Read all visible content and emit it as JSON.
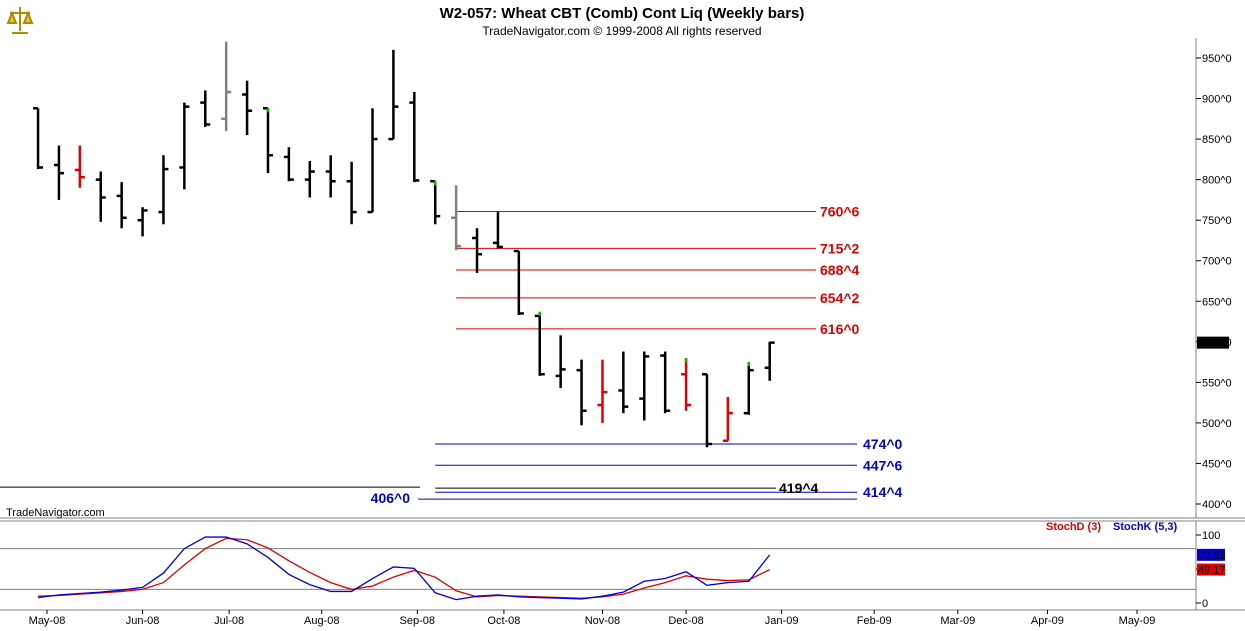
{
  "title": "W2-057:  Wheat CBT (Comb) Cont Liq  (Weekly bars)",
  "subtitle": "TradeNavigator.com © 1999-2008 All rights reserved",
  "watermark": "TradeNavigator.com",
  "logo_icon": "scales-logo-icon",
  "colors": {
    "bar": "#000000",
    "bar_down": "#e00000",
    "bar_gray": "#808080",
    "bar_green": "#00c000",
    "red_level": "#e00000",
    "blue_level": "#0000cc",
    "stoch_k": "#0000dd",
    "stoch_d": "#e00000"
  },
  "chart_data": [
    {
      "type": "ohlc",
      "name": "price",
      "title": "W2-057:  Wheat CBT (Comb) Cont Liq  (Weekly bars)",
      "ylim": [
        380,
        975
      ],
      "yticks": [
        {
          "v": 950,
          "label": "950^0"
        },
        {
          "v": 900,
          "label": "900^0"
        },
        {
          "v": 850,
          "label": "850^0"
        },
        {
          "v": 800,
          "label": "800^0"
        },
        {
          "v": 750,
          "label": "750^0"
        },
        {
          "v": 700,
          "label": "700^0"
        },
        {
          "v": 650,
          "label": "650^0"
        },
        {
          "v": 600,
          "label": "600^0"
        },
        {
          "v": 550,
          "label": "550^0"
        },
        {
          "v": 500,
          "label": "500^0"
        },
        {
          "v": 450,
          "label": "450^0"
        },
        {
          "v": 400,
          "label": "400^0"
        }
      ],
      "current_price": {
        "value": 599,
        "label": "599^0"
      },
      "xlim": [
        "2008-04-28",
        "2009-05-25"
      ],
      "x_ticks": [
        {
          "date": "2008-05-01",
          "label": "May-08"
        },
        {
          "date": "2008-06-02",
          "label": "Jun-08"
        },
        {
          "date": "2008-07-01",
          "label": "Jul-08"
        },
        {
          "date": "2008-08-01",
          "label": "Aug-08"
        },
        {
          "date": "2008-09-02",
          "label": "Sep-08"
        },
        {
          "date": "2008-10-01",
          "label": "Oct-08"
        },
        {
          "date": "2008-11-03",
          "label": "Nov-08"
        },
        {
          "date": "2008-12-01",
          "label": "Dec-08"
        },
        {
          "date": "2009-01-02",
          "label": "Jan-09"
        },
        {
          "date": "2009-02-02",
          "label": "Feb-09"
        },
        {
          "date": "2009-03-02",
          "label": "Mar-09"
        },
        {
          "date": "2009-04-01",
          "label": "Apr-09"
        },
        {
          "date": "2009-05-01",
          "label": "May-09"
        }
      ],
      "bars": [
        {
          "date": "2008-04-28",
          "o": 888,
          "h": 888,
          "l": 813,
          "c": 815,
          "color": "black"
        },
        {
          "date": "2008-05-05",
          "o": 818,
          "h": 842,
          "l": 775,
          "c": 808,
          "color": "black"
        },
        {
          "date": "2008-05-12",
          "o": 812,
          "h": 842,
          "l": 790,
          "c": 803,
          "color": "red"
        },
        {
          "date": "2008-05-19",
          "o": 800,
          "h": 810,
          "l": 748,
          "c": 778,
          "color": "black"
        },
        {
          "date": "2008-05-26",
          "o": 780,
          "h": 797,
          "l": 740,
          "c": 753,
          "color": "black"
        },
        {
          "date": "2008-06-02",
          "o": 750,
          "h": 766,
          "l": 730,
          "c": 762,
          "color": "black"
        },
        {
          "date": "2008-06-09",
          "o": 760,
          "h": 830,
          "l": 745,
          "c": 813,
          "color": "black"
        },
        {
          "date": "2008-06-16",
          "o": 815,
          "h": 895,
          "l": 788,
          "c": 890,
          "color": "black"
        },
        {
          "date": "2008-06-23",
          "o": 895,
          "h": 910,
          "l": 865,
          "c": 868,
          "color": "black"
        },
        {
          "date": "2008-06-30",
          "o": 875,
          "h": 970,
          "l": 860,
          "c": 908,
          "color": "gray"
        },
        {
          "date": "2008-07-07",
          "o": 905,
          "h": 922,
          "l": 855,
          "c": 885,
          "color": "black"
        },
        {
          "date": "2008-07-14",
          "o": 888,
          "h": 888,
          "l": 808,
          "c": 830,
          "color": "black",
          "mark": "green"
        },
        {
          "date": "2008-07-21",
          "o": 828,
          "h": 840,
          "l": 798,
          "c": 800,
          "color": "black"
        },
        {
          "date": "2008-07-28",
          "o": 800,
          "h": 823,
          "l": 778,
          "c": 810,
          "color": "black"
        },
        {
          "date": "2008-08-04",
          "o": 810,
          "h": 830,
          "l": 778,
          "c": 798,
          "color": "black"
        },
        {
          "date": "2008-08-11",
          "o": 798,
          "h": 822,
          "l": 745,
          "c": 760,
          "color": "black"
        },
        {
          "date": "2008-08-18",
          "o": 760,
          "h": 888,
          "l": 760,
          "c": 850,
          "color": "black"
        },
        {
          "date": "2008-08-25",
          "o": 850,
          "h": 960,
          "l": 850,
          "c": 890,
          "color": "black"
        },
        {
          "date": "2008-09-01",
          "o": 895,
          "h": 908,
          "l": 797,
          "c": 799,
          "color": "black"
        },
        {
          "date": "2008-09-08",
          "o": 798,
          "h": 798,
          "l": 745,
          "c": 755,
          "color": "black",
          "mark": "green"
        },
        {
          "date": "2008-09-15",
          "o": 753,
          "h": 793,
          "l": 713,
          "c": 718,
          "color": "gray"
        },
        {
          "date": "2008-09-22",
          "o": 728,
          "h": 740,
          "l": 685,
          "c": 708,
          "color": "black"
        },
        {
          "date": "2008-09-29",
          "o": 722,
          "h": 760,
          "l": 715,
          "c": 717,
          "color": "black"
        },
        {
          "date": "2008-10-06",
          "o": 712,
          "h": 712,
          "l": 633,
          "c": 635,
          "color": "black"
        },
        {
          "date": "2008-10-13",
          "o": 632,
          "h": 637,
          "l": 558,
          "c": 560,
          "color": "black",
          "mark": "green"
        },
        {
          "date": "2008-10-20",
          "o": 558,
          "h": 608,
          "l": 543,
          "c": 566,
          "color": "black"
        },
        {
          "date": "2008-10-27",
          "o": 565,
          "h": 578,
          "l": 497,
          "c": 515,
          "color": "black"
        },
        {
          "date": "2008-11-03",
          "o": 522,
          "h": 578,
          "l": 500,
          "c": 538,
          "color": "red"
        },
        {
          "date": "2008-11-10",
          "o": 540,
          "h": 588,
          "l": 512,
          "c": 520,
          "color": "black"
        },
        {
          "date": "2008-11-17",
          "o": 530,
          "h": 588,
          "l": 503,
          "c": 582,
          "color": "black"
        },
        {
          "date": "2008-11-24",
          "o": 583,
          "h": 588,
          "l": 512,
          "c": 515,
          "color": "black"
        },
        {
          "date": "2008-12-01",
          "o": 560,
          "h": 580,
          "l": 515,
          "c": 522,
          "color": "red",
          "mark": "green"
        },
        {
          "date": "2008-12-08",
          "o": 560,
          "h": 560,
          "l": 470,
          "c": 474,
          "color": "black"
        },
        {
          "date": "2008-12-15",
          "o": 478,
          "h": 532,
          "l": 478,
          "c": 512,
          "color": "red"
        },
        {
          "date": "2008-12-22",
          "o": 512,
          "h": 575,
          "l": 510,
          "c": 565,
          "color": "black",
          "mark": "green"
        },
        {
          "date": "2008-12-29",
          "o": 568,
          "h": 600,
          "l": 552,
          "c": 599,
          "color": "black"
        }
      ],
      "levels": [
        {
          "value": 760.75,
          "label": "760^6",
          "color": "red",
          "from": "2008-09-15"
        },
        {
          "value": 715.25,
          "label": "715^2",
          "color": "red",
          "from": "2008-09-15"
        },
        {
          "value": 688.5,
          "label": "688^4",
          "color": "red",
          "from": "2008-09-15"
        },
        {
          "value": 654.25,
          "label": "654^2",
          "color": "red",
          "from": "2008-09-15"
        },
        {
          "value": 616,
          "label": "616^0",
          "color": "red",
          "from": "2008-09-15"
        },
        {
          "value": 474,
          "label": "474^0",
          "color": "blue",
          "from": "2008-09-08"
        },
        {
          "value": 447.75,
          "label": "447^6",
          "color": "blue",
          "from": "2008-09-08"
        },
        {
          "value": 414.5,
          "label": "414^4",
          "color": "blue",
          "from": "2008-09-08"
        },
        {
          "value": 419.5,
          "label": "419^4",
          "color": "black",
          "from": "2008-09-08"
        }
      ],
      "left_annotations": [
        {
          "value": 406,
          "label": "406^0",
          "color": "blue"
        }
      ],
      "reference_line": {
        "value": 419.5
      }
    },
    {
      "type": "line",
      "name": "stochastic",
      "ylim": [
        -10,
        118
      ],
      "yticks": [
        {
          "v": 100,
          "label": "100"
        },
        {
          "v": 50,
          "label": "50"
        },
        {
          "v": 0,
          "label": "0"
        }
      ],
      "ref_lines": [
        80,
        20
      ],
      "series": [
        {
          "name": "StochK (5,3)",
          "color": "blue",
          "last_label": "70.81",
          "values": [
            8,
            12,
            14,
            16,
            19,
            23,
            44,
            80,
            97,
            97,
            87,
            67,
            42,
            27,
            17,
            17,
            36,
            53,
            51,
            15,
            5,
            10,
            12,
            9,
            8,
            7,
            6,
            10,
            16,
            32,
            36,
            46,
            26,
            30,
            32,
            70.81
          ]
        },
        {
          "name": "StochD (3)",
          "color": "red",
          "last_label": "49.17",
          "values": [
            10,
            11,
            13,
            15,
            17,
            20,
            30,
            56,
            80,
            95,
            93,
            81,
            62,
            45,
            30,
            20,
            25,
            38,
            48,
            38,
            18,
            9,
            11,
            10,
            9,
            8,
            7,
            9,
            13,
            22,
            30,
            40,
            35,
            33,
            34,
            49.17
          ]
        }
      ]
    }
  ]
}
